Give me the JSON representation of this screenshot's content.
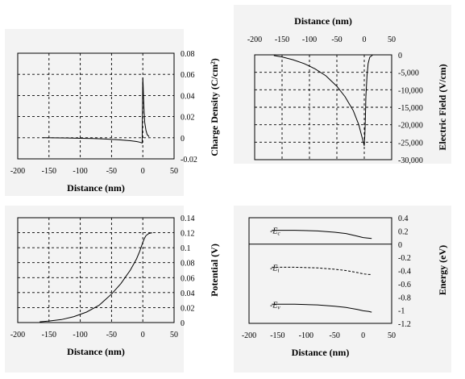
{
  "chart_data": [
    {
      "id": "charge",
      "type": "line",
      "xlabel": "Distance (nm)",
      "ylabel": "Charge Density (C/cm²)",
      "xlim": [
        -200,
        50
      ],
      "ylim": [
        -0.02,
        0.08
      ],
      "xticks": [
        -200,
        -150,
        -100,
        -50,
        0,
        50
      ],
      "yticks": [
        -0.02,
        0,
        0.02,
        0.04,
        0.06,
        0.08
      ],
      "ytick_labels": [
        "-0.02",
        "0",
        "0.02",
        "0.04",
        "0.06",
        "0.08"
      ],
      "grid": true,
      "series": [
        {
          "x": [
            -160,
            -120,
            -100,
            -80,
            -60,
            -40,
            -20,
            -10,
            -5,
            -1,
            0,
            0.5,
            1,
            2,
            3,
            5,
            7,
            10
          ],
          "y": [
            0,
            -0.0002,
            -0.0005,
            -0.0008,
            -0.0012,
            -0.0018,
            -0.0028,
            -0.0036,
            -0.0042,
            -0.005,
            0.057,
            0.05,
            0.04,
            0.025,
            0.015,
            0.007,
            0.003,
            0.001
          ]
        }
      ]
    },
    {
      "id": "field",
      "type": "line",
      "xlabel": "Distance (nm)",
      "ylabel": "Electric Field (V/cm)",
      "xlim": [
        -200,
        50
      ],
      "ylim": [
        -30000,
        0
      ],
      "xticks": [
        -200,
        -150,
        -100,
        -50,
        0,
        50
      ],
      "yticks": [
        0,
        -5000,
        -10000,
        -15000,
        -20000,
        -25000,
        -30000
      ],
      "ytick_labels": [
        "0",
        "-5,000",
        "-10,000",
        "-15,000",
        "-20,000",
        "-25,000",
        "-30,000"
      ],
      "grid": true,
      "series": [
        {
          "x": [
            -165,
            -150,
            -130,
            -110,
            -90,
            -70,
            -50,
            -35,
            -20,
            -10,
            -5,
            0,
            1,
            2,
            3,
            5,
            7,
            10,
            15
          ],
          "y": [
            -200,
            -600,
            -1400,
            -2500,
            -4000,
            -6000,
            -9000,
            -12000,
            -16000,
            -20000,
            -23000,
            -26000,
            -23000,
            -18000,
            -12000,
            -6000,
            -2500,
            -700,
            -100
          ]
        }
      ]
    },
    {
      "id": "potential",
      "type": "line",
      "xlabel": "Distance (nm)",
      "ylabel": "Potential (V)",
      "xlim": [
        -200,
        50
      ],
      "ylim": [
        0,
        0.14
      ],
      "xticks": [
        -200,
        -150,
        -100,
        -50,
        0,
        50
      ],
      "yticks": [
        0,
        0.02,
        0.04,
        0.06,
        0.08,
        0.1,
        0.12,
        0.14
      ],
      "ytick_labels": [
        "0",
        "0.02",
        "0.04",
        "0.06",
        "0.08",
        "0.1",
        "0.12",
        "0.14"
      ],
      "grid": true,
      "series": [
        {
          "x": [
            -165,
            -150,
            -130,
            -110,
            -90,
            -70,
            -50,
            -35,
            -20,
            -10,
            -5,
            0,
            3,
            5,
            8,
            10,
            15
          ],
          "y": [
            0.001,
            0.002,
            0.004,
            0.008,
            0.014,
            0.023,
            0.038,
            0.052,
            0.07,
            0.085,
            0.095,
            0.107,
            0.113,
            0.116,
            0.118,
            0.119,
            0.12
          ]
        }
      ]
    },
    {
      "id": "energy",
      "type": "line",
      "xlabel": "Distance (nm)",
      "ylabel": "Energy (eV)",
      "xlim": [
        -200,
        50
      ],
      "ylim": [
        -1.2,
        0.4
      ],
      "xticks": [
        -200,
        -150,
        -100,
        -50,
        0,
        50
      ],
      "yticks": [
        0.4,
        0.2,
        0,
        -0.2,
        -0.4,
        -0.6,
        -0.8,
        -1,
        -1.2
      ],
      "ytick_labels": [
        "0.4",
        "0.2",
        "0",
        "-0.2",
        "-0.4",
        "-0.6",
        "-0.8",
        "-1",
        "-1.2"
      ],
      "grid": false,
      "series": [
        {
          "name": "-Ec",
          "label_main": "-E",
          "label_sub": "c",
          "dashed": false,
          "x": [
            -160,
            -120,
            -80,
            -50,
            -30,
            -10,
            0,
            10,
            15
          ],
          "y": [
            0.21,
            0.21,
            0.2,
            0.18,
            0.16,
            0.12,
            0.1,
            0.09,
            0.085
          ]
        },
        {
          "name": "-Ei",
          "label_main": "-E",
          "label_sub": "i",
          "dashed": true,
          "x": [
            -160,
            -120,
            -80,
            -50,
            -30,
            -10,
            0,
            10,
            15
          ],
          "y": [
            -0.35,
            -0.35,
            -0.36,
            -0.38,
            -0.4,
            -0.43,
            -0.45,
            -0.46,
            -0.46
          ]
        },
        {
          "name": "-Ev",
          "label_main": "-E",
          "label_sub": "v",
          "dashed": false,
          "x": [
            -160,
            -120,
            -80,
            -50,
            -30,
            -10,
            0,
            10,
            15
          ],
          "y": [
            -0.91,
            -0.91,
            -0.92,
            -0.94,
            -0.96,
            -0.99,
            -1.01,
            -1.02,
            -1.03
          ]
        }
      ],
      "hline": 0
    }
  ]
}
